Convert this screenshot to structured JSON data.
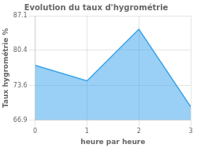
{
  "chart_data": {
    "type": "area",
    "title": "Evolution du taux d'hygrométrie",
    "xlabel": "heure par heure",
    "ylabel": "Taux hygrométrie %",
    "x": [
      0,
      1,
      2,
      3
    ],
    "values": [
      77.5,
      74.5,
      84.5,
      69.5
    ],
    "xlim": [
      0,
      3
    ],
    "ylim": [
      66.9,
      87.1
    ],
    "xticks": [
      0,
      1,
      2,
      3
    ],
    "yticks": [
      66.9,
      73.6,
      80.4,
      87.1
    ],
    "grid": true
  }
}
